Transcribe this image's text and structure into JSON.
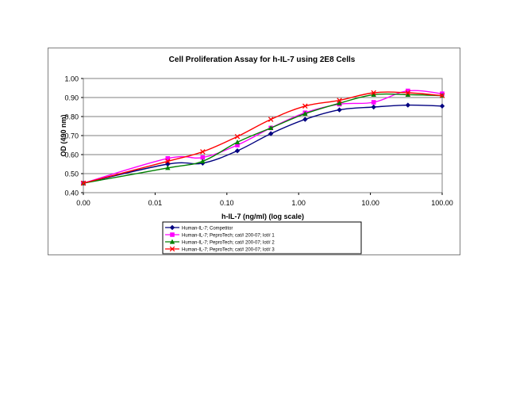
{
  "chart_data": {
    "type": "line",
    "title": "Cell Proliferation Assay for h-IL-7 using 2E8 Cells",
    "xlabel": "h-IL-7 (ng/ml) (log scale)",
    "ylabel": "OD (490 nm)",
    "x_scale": "log",
    "x_ticks": [
      "0.00",
      "0.01",
      "0.10",
      "1.00",
      "10.00",
      "100.00"
    ],
    "y_ticks": [
      "0.40",
      "0.50",
      "0.60",
      "0.70",
      "0.80",
      "0.90",
      "1.00"
    ],
    "ylim": [
      0.4,
      1.0
    ],
    "grid": "horizontal",
    "legend_position": "bottom",
    "x": [
      0.001,
      0.015,
      0.046,
      0.14,
      0.41,
      1.23,
      3.7,
      11.1,
      33.3,
      100
    ],
    "series": [
      {
        "name": "Human-IL-7; Competitor",
        "color": "#000080",
        "marker": "diamond",
        "values": [
          0.45,
          0.55,
          0.555,
          0.62,
          0.71,
          0.785,
          0.835,
          0.85,
          0.86,
          0.855
        ]
      },
      {
        "name": "Human-IL-7; PeproTech; cat# 200-07; lot# 1",
        "color": "#ff00ff",
        "marker": "square",
        "values": [
          0.45,
          0.58,
          0.585,
          0.65,
          0.74,
          0.82,
          0.865,
          0.875,
          0.935,
          0.92
        ]
      },
      {
        "name": "Human-IL-7; PeproTech; cat# 200-07; lot# 2",
        "color": "#008000",
        "marker": "triangle",
        "values": [
          0.45,
          0.53,
          0.565,
          0.665,
          0.74,
          0.815,
          0.87,
          0.915,
          0.915,
          0.91
        ]
      },
      {
        "name": "Human-IL-7; PeproTech; cat# 200-07; lot# 3",
        "color": "#ff0000",
        "marker": "x",
        "values": [
          0.45,
          0.565,
          0.615,
          0.695,
          0.785,
          0.855,
          0.885,
          0.925,
          0.925,
          0.91
        ]
      }
    ]
  }
}
